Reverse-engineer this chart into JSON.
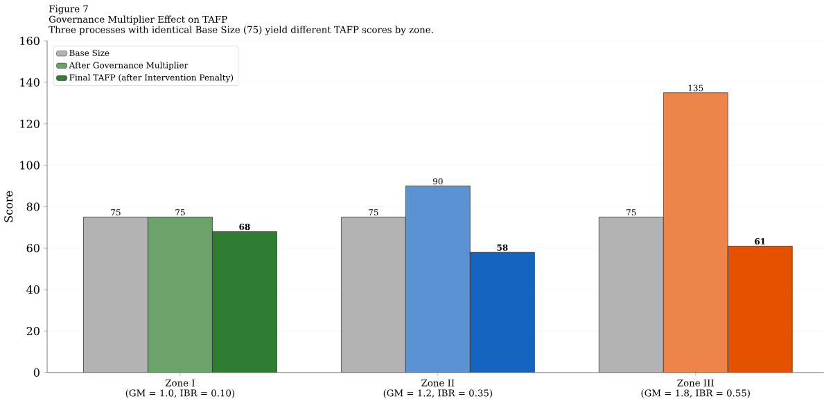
{
  "chart_data": {
    "type": "bar",
    "title": "Figure 7",
    "subtitle": "Governance Multiplier Effect on TAFP",
    "annotations": [
      "Three processes with identical Base Size (75) yield different TAFP scores by zone."
    ],
    "ylabel": "Score",
    "categories": [
      "Zone I\n(GM = 1.0, IBR = 0.10)",
      "Zone II\n(GM = 1.2, IBR = 0.35)",
      "Zone III\n(GM = 1.8, IBR = 0.55)"
    ],
    "series": [
      {
        "name": "Base Size",
        "color": "#b3b3b3",
        "colors": [
          "#b3b3b3",
          "#b3b3b3",
          "#b3b3b3"
        ],
        "values": [
          75,
          75,
          75
        ],
        "value_labels": [
          "75",
          "75",
          "75"
        ]
      },
      {
        "name": "After Governance Multiplier",
        "color": "#6ba36b",
        "colors": [
          "#6ba36b",
          "#5b92d3",
          "#ed854b"
        ],
        "values": [
          75,
          90,
          135
        ],
        "value_labels": [
          "75",
          "90",
          "135"
        ]
      },
      {
        "name": "Final TAFP (after Intervention Penalty)",
        "color": "#2e7d32",
        "colors": [
          "#2e7d32",
          "#1565c0",
          "#e65100"
        ],
        "values": [
          68,
          58,
          61
        ],
        "value_labels": [
          "**68**",
          "**58**",
          "**61**"
        ]
      }
    ],
    "ylim": [
      0,
      160
    ],
    "yticks": [
      0,
      20,
      40,
      60,
      80,
      100,
      120,
      140,
      160
    ],
    "grid": "y",
    "legend": "top left"
  }
}
